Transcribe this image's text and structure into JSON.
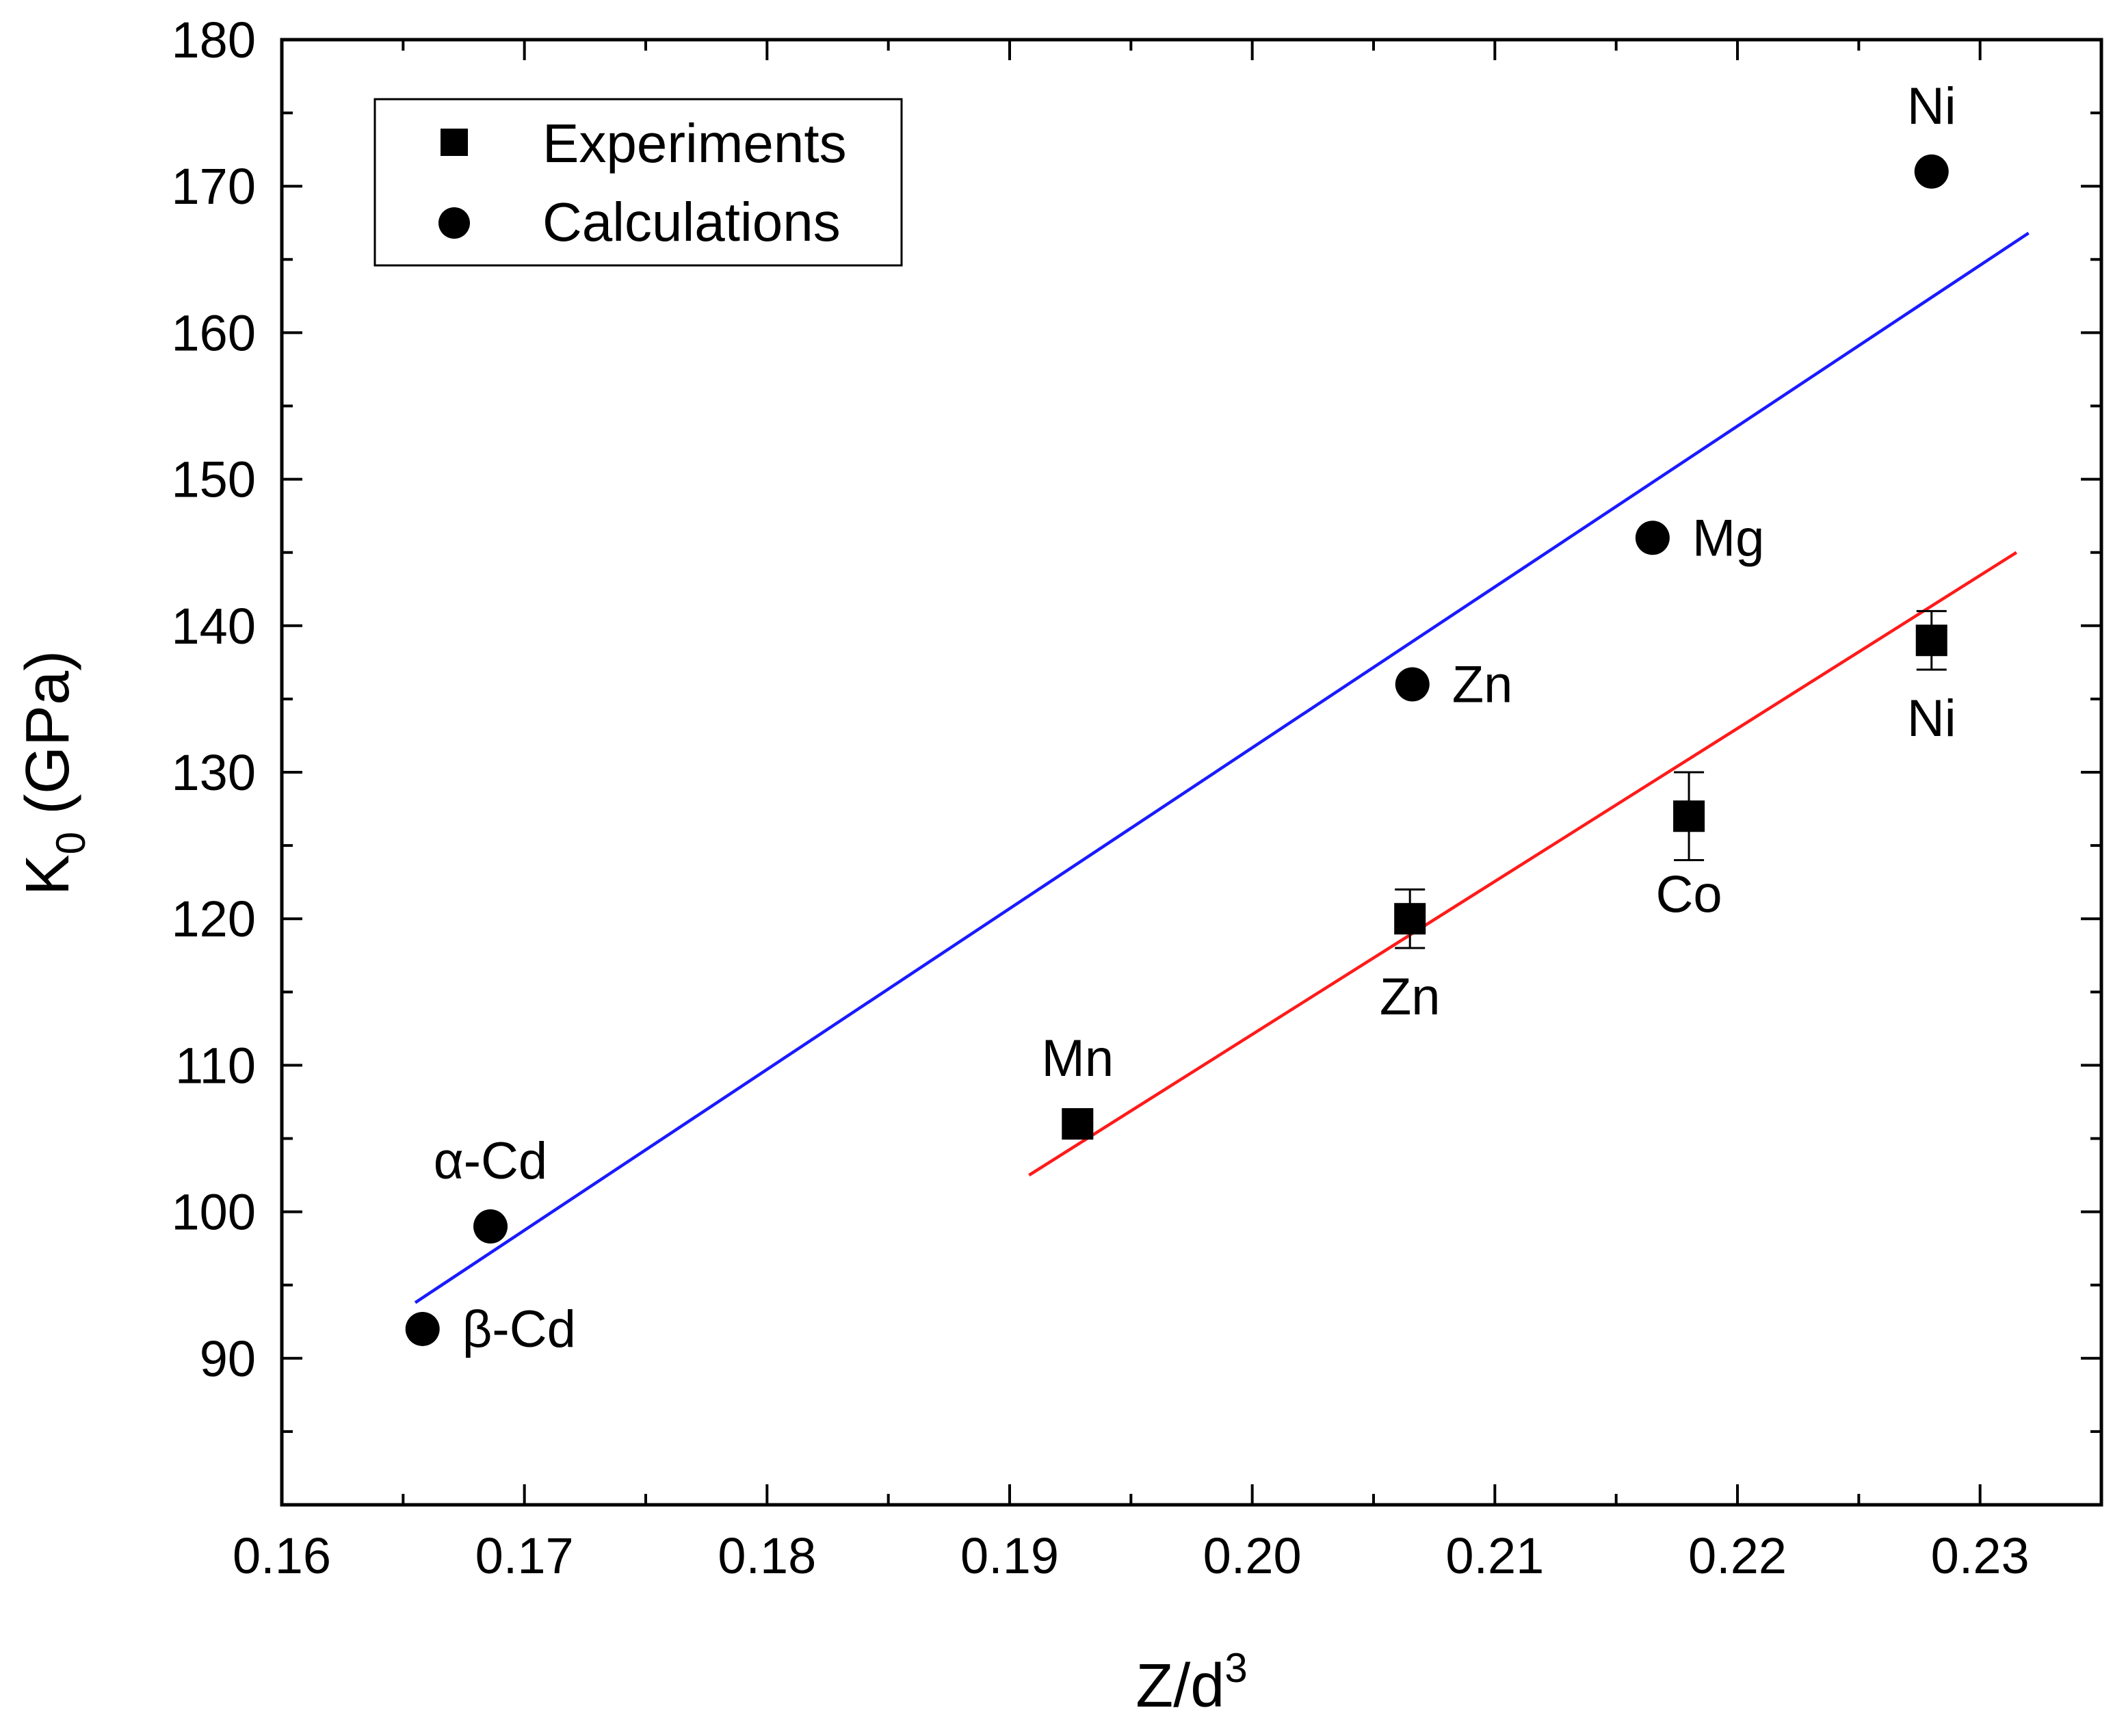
{
  "chart_data": {
    "type": "scatter",
    "xlabel": "Z/d",
    "xlabel_superscript": "3",
    "ylabel_main": "K",
    "ylabel_subscript": "0",
    "ylabel_unit": " (GPa)",
    "xlim": [
      0.16,
      0.235
    ],
    "ylim": [
      80,
      180
    ],
    "xticks": [
      {
        "value": 0.16,
        "label": "0.16"
      },
      {
        "value": 0.17,
        "label": "0.17"
      },
      {
        "value": 0.18,
        "label": "0.18"
      },
      {
        "value": 0.19,
        "label": "0.19"
      },
      {
        "value": 0.2,
        "label": "0.20"
      },
      {
        "value": 0.21,
        "label": "0.21"
      },
      {
        "value": 0.22,
        "label": "0.22"
      },
      {
        "value": 0.23,
        "label": "0.23"
      }
    ],
    "yticks": [
      {
        "value": 90,
        "label": "90"
      },
      {
        "value": 100,
        "label": "100"
      },
      {
        "value": 110,
        "label": "110"
      },
      {
        "value": 120,
        "label": "120"
      },
      {
        "value": 130,
        "label": "130"
      },
      {
        "value": 140,
        "label": "140"
      },
      {
        "value": 150,
        "label": "150"
      },
      {
        "value": 160,
        "label": "160"
      },
      {
        "value": 170,
        "label": "170"
      },
      {
        "value": 180,
        "label": "180"
      }
    ],
    "legend": {
      "position": "top-left",
      "entries": [
        {
          "name": "Experiments",
          "marker": "square"
        },
        {
          "name": "Calculations",
          "marker": "circle"
        }
      ]
    },
    "series": [
      {
        "name": "Experiments",
        "marker": "square",
        "points": [
          {
            "x": 0.1928,
            "y": 106,
            "label": "Mn",
            "label_pos": "above"
          },
          {
            "x": 0.2065,
            "y": 120,
            "err": 2,
            "label": "Zn",
            "label_pos": "below"
          },
          {
            "x": 0.218,
            "y": 127,
            "err": 3,
            "label": "Co",
            "label_pos": "below"
          },
          {
            "x": 0.228,
            "y": 139,
            "err": 2,
            "label": "Ni",
            "label_pos": "below"
          }
        ]
      },
      {
        "name": "Calculations",
        "marker": "circle",
        "points": [
          {
            "x": 0.1658,
            "y": 92,
            "label": "β-Cd",
            "label_pos": "right"
          },
          {
            "x": 0.1686,
            "y": 99,
            "label": "α-Cd",
            "label_pos": "above"
          },
          {
            "x": 0.2066,
            "y": 136,
            "label": "Zn",
            "label_pos": "right"
          },
          {
            "x": 0.2165,
            "y": 146,
            "label": "Mg",
            "label_pos": "right"
          },
          {
            "x": 0.228,
            "y": 171,
            "label": "Ni",
            "label_pos": "above"
          }
        ]
      }
    ],
    "fit_lines": [
      {
        "name": "calculations-fit",
        "color": "#1a1aff",
        "x": [
          0.1655,
          0.232
        ],
        "y": [
          93.8,
          166.8
        ]
      },
      {
        "name": "experiments-fit",
        "color": "#ff1a1a",
        "x": [
          0.1908,
          0.2315
        ],
        "y": [
          102.5,
          145.0
        ]
      }
    ]
  }
}
